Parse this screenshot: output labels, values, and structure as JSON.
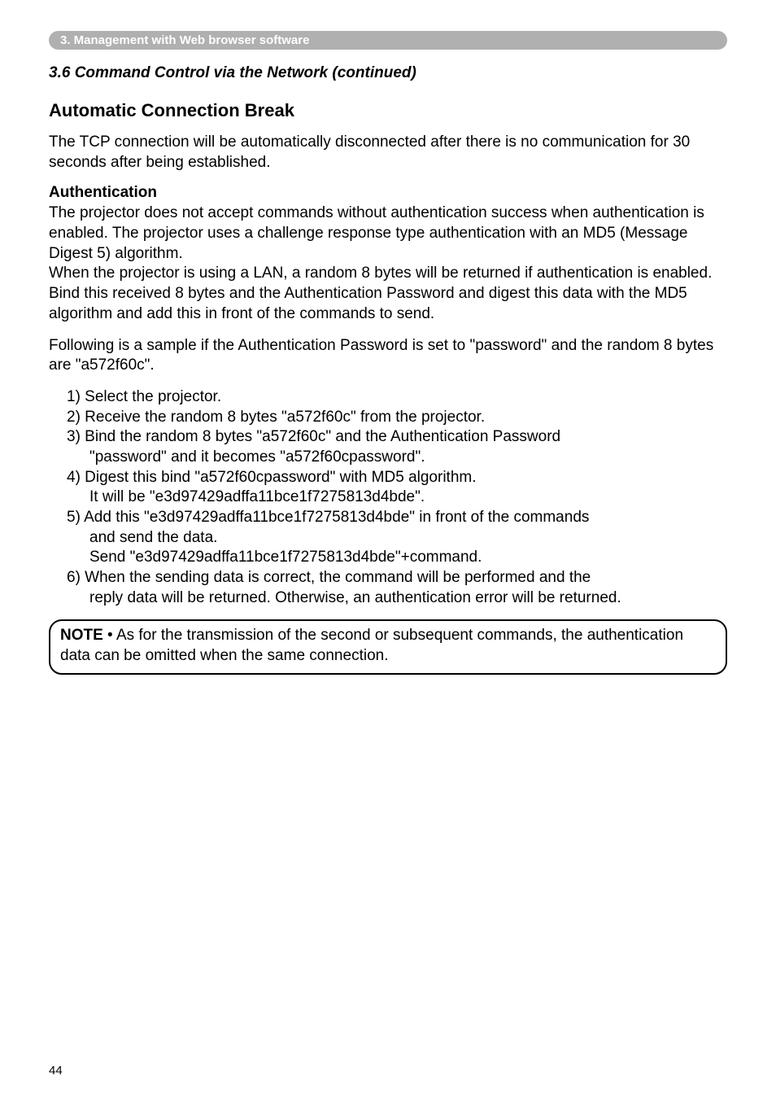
{
  "section_bar": "3. Management with Web browser software",
  "sub_heading": "3.6 Command Control via the Network (continued)",
  "h_break": "Automatic Connection Break",
  "p_break": "The TCP connection will be automatically disconnected after there is no communication for 30 seconds after being established.",
  "h_auth": "Authentication",
  "p_auth1": "The projector does not accept commands without authentication success when authentication is enabled. The projector uses a challenge response type authentication with an MD5 (Message Digest 5) algorithm.",
  "p_auth2": "When the projector is using a LAN, a random 8 bytes will be returned if authentication is enabled. Bind this received 8 bytes and the Authentication Password and digest this data with the MD5 algorithm and add this in front of the commands to send.",
  "p_example_intro": "Following is a sample if the Authentication Password is set to \"password\" and the random 8 bytes are \"a572f60c\".",
  "steps": {
    "s1": "1) Select the projector.",
    "s2": "2) Receive the random 8 bytes \"a572f60c\" from the projector.",
    "s3a": "3) Bind the random 8 bytes \"a572f60c\" and the Authentication Password",
    "s3b": "\"password\" and it becomes \"a572f60cpassword\".",
    "s4a": "4) Digest this bind \"a572f60cpassword\" with MD5 algorithm.",
    "s4b": "It will be \"e3d97429adffa11bce1f7275813d4bde\".",
    "s5a": "5) Add this \"e3d97429adffa11bce1f7275813d4bde\" in front of the commands",
    "s5b": "and send the data.",
    "s5c": "Send \"e3d97429adffa11bce1f7275813d4bde\"+command.",
    "s6a": "6) When the sending data is correct, the command will be performed and the",
    "s6b": "reply data will be returned. Otherwise, an authentication error will be returned."
  },
  "note_label": "NOTE",
  "note_text": " • As for the transmission of the second or subsequent commands, the authentication data can be omitted when the same connection.",
  "page_number": "44"
}
